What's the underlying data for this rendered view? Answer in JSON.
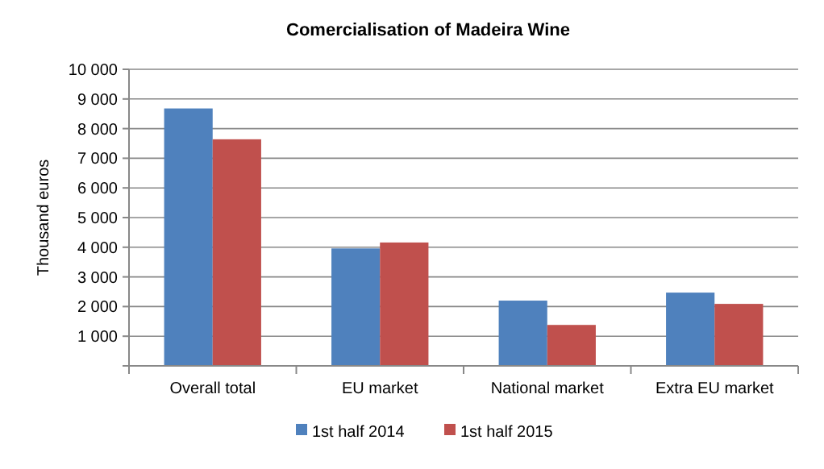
{
  "chart_data": {
    "type": "bar",
    "title": "Comercialisation of Madeira Wine",
    "ylabel": "Thousand euros",
    "categories": [
      "Overall total",
      "EU market",
      "National market",
      "Extra EU market"
    ],
    "series": [
      {
        "name": "1st half 2014",
        "color": "#4f81bd",
        "values": [
          8680,
          3960,
          2200,
          2470
        ]
      },
      {
        "name": "1st half 2015",
        "color": "#c0504d",
        "values": [
          7640,
          4160,
          1380,
          2090
        ]
      }
    ],
    "ylim": [
      0,
      10000
    ],
    "yticks": [
      {
        "value": 0,
        "label": null
      },
      {
        "value": 1000,
        "label": "1 000"
      },
      {
        "value": 2000,
        "label": "2 000"
      },
      {
        "value": 3000,
        "label": "3 000"
      },
      {
        "value": 4000,
        "label": "4 000"
      },
      {
        "value": 5000,
        "label": "5 000"
      },
      {
        "value": 6000,
        "label": "6 000"
      },
      {
        "value": 7000,
        "label": "7 000"
      },
      {
        "value": 8000,
        "label": "8 000"
      },
      {
        "value": 9000,
        "label": "9 000"
      },
      {
        "value": 10000,
        "label": "10 000"
      }
    ],
    "grid": "y",
    "legend": "bottom"
  }
}
